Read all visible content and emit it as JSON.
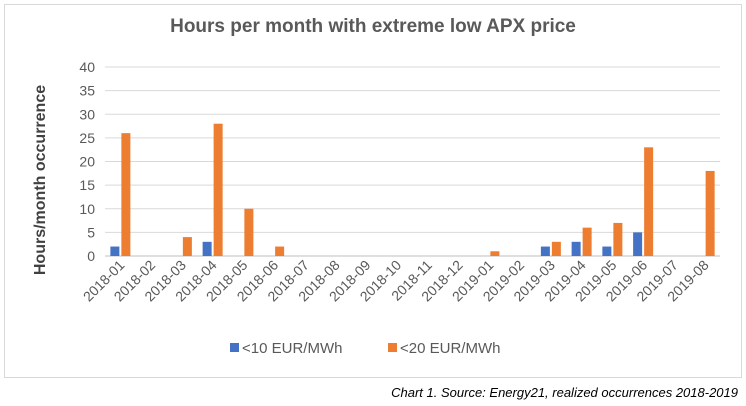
{
  "caption": "Chart 1. Source: Energy21, realized occurrences 2018-2019",
  "colors": {
    "series1": "#4472c4",
    "series2": "#ed7d31",
    "grid": "#d9d9d9",
    "axis": "#bfbfbf"
  },
  "chart_data": {
    "type": "bar",
    "title": "Hours per month with extreme low APX price",
    "xlabel": "",
    "ylabel": "Hours/month occurrence",
    "ylim": [
      0,
      40
    ],
    "yticks": [
      0,
      5,
      10,
      15,
      20,
      25,
      30,
      35,
      40
    ],
    "grid": true,
    "legend_position": "bottom",
    "categories": [
      "2018-01",
      "2018-02",
      "2018-03",
      "2018-04",
      "2018-05",
      "2018-06",
      "2018-07",
      "2018-08",
      "2018-09",
      "2018-10",
      "2018-11",
      "2018-12",
      "2019-01",
      "2019-02",
      "2019-03",
      "2019-04",
      "2019-05",
      "2019-06",
      "2019-07",
      "2019-08"
    ],
    "series": [
      {
        "name": "<10 EUR/MWh",
        "values": [
          2,
          0,
          0,
          3,
          0,
          0,
          0,
          0,
          0,
          0,
          0,
          0,
          0,
          0,
          2,
          3,
          2,
          5,
          0,
          0
        ]
      },
      {
        "name": "<20 EUR/MWh",
        "values": [
          26,
          0,
          4,
          28,
          10,
          2,
          0,
          0,
          0,
          0,
          0,
          0,
          1,
          0,
          3,
          6,
          7,
          23,
          0,
          18
        ]
      }
    ]
  }
}
